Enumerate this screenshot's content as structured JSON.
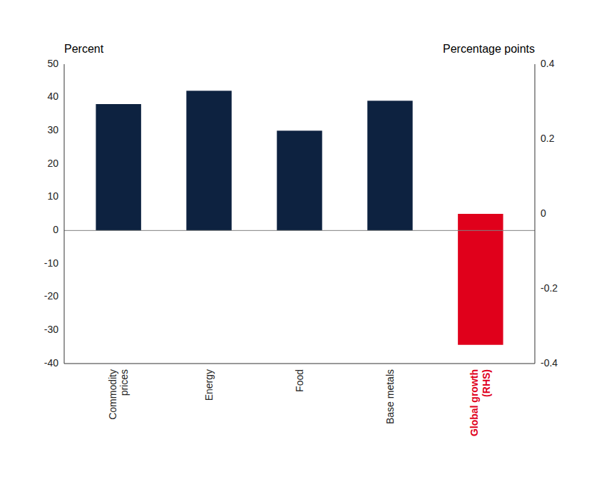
{
  "chart_data": {
    "type": "bar",
    "categories": [
      "Commodity\nprices",
      "Energy",
      "Food",
      "Base metals",
      "Global growth\n(RHS)"
    ],
    "series": [
      {
        "color": "#0d2240",
        "values": [
          38,
          42,
          30,
          39,
          null
        ]
      },
      {
        "color": "#e0001b",
        "values": [
          null,
          null,
          null,
          null,
          -0.35
        ],
        "axis": "y2"
      }
    ],
    "ylim": [
      -40,
      50
    ],
    "yticks": [
      -40,
      -30,
      -20,
      -10,
      0,
      10,
      20,
      30,
      40,
      50
    ],
    "y2lim": [
      -0.4,
      0.4
    ],
    "y2ticks": [
      -0.4,
      -0.2,
      0,
      0.2,
      0.4
    ],
    "ylabel": "Percent",
    "y2label": "Percentage points",
    "grid": false
  }
}
